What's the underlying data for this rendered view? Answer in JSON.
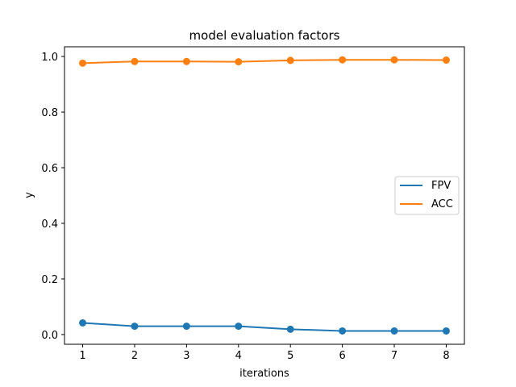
{
  "chart_data": {
    "type": "line",
    "title": "model evaluation factors",
    "xlabel": "iterations",
    "ylabel": "y",
    "x": [
      1,
      2,
      3,
      4,
      5,
      6,
      7,
      8
    ],
    "xticks": [
      "1",
      "2",
      "3",
      "4",
      "5",
      "6",
      "7",
      "8"
    ],
    "yticks": [
      "0.0",
      "0.2",
      "0.4",
      "0.6",
      "0.8",
      "1.0"
    ],
    "xlim": [
      0.65,
      8.35
    ],
    "ylim": [
      -0.035,
      1.035
    ],
    "grid": false,
    "legend_position": "center-right",
    "markers": true,
    "series": [
      {
        "name": "FPV",
        "color": "#1f77b4",
        "values": [
          0.042,
          0.03,
          0.03,
          0.03,
          0.019,
          0.013,
          0.013,
          0.013
        ]
      },
      {
        "name": "ACC",
        "color": "#ff7f0e",
        "values": [
          0.976,
          0.982,
          0.982,
          0.981,
          0.986,
          0.988,
          0.988,
          0.987
        ]
      }
    ]
  }
}
